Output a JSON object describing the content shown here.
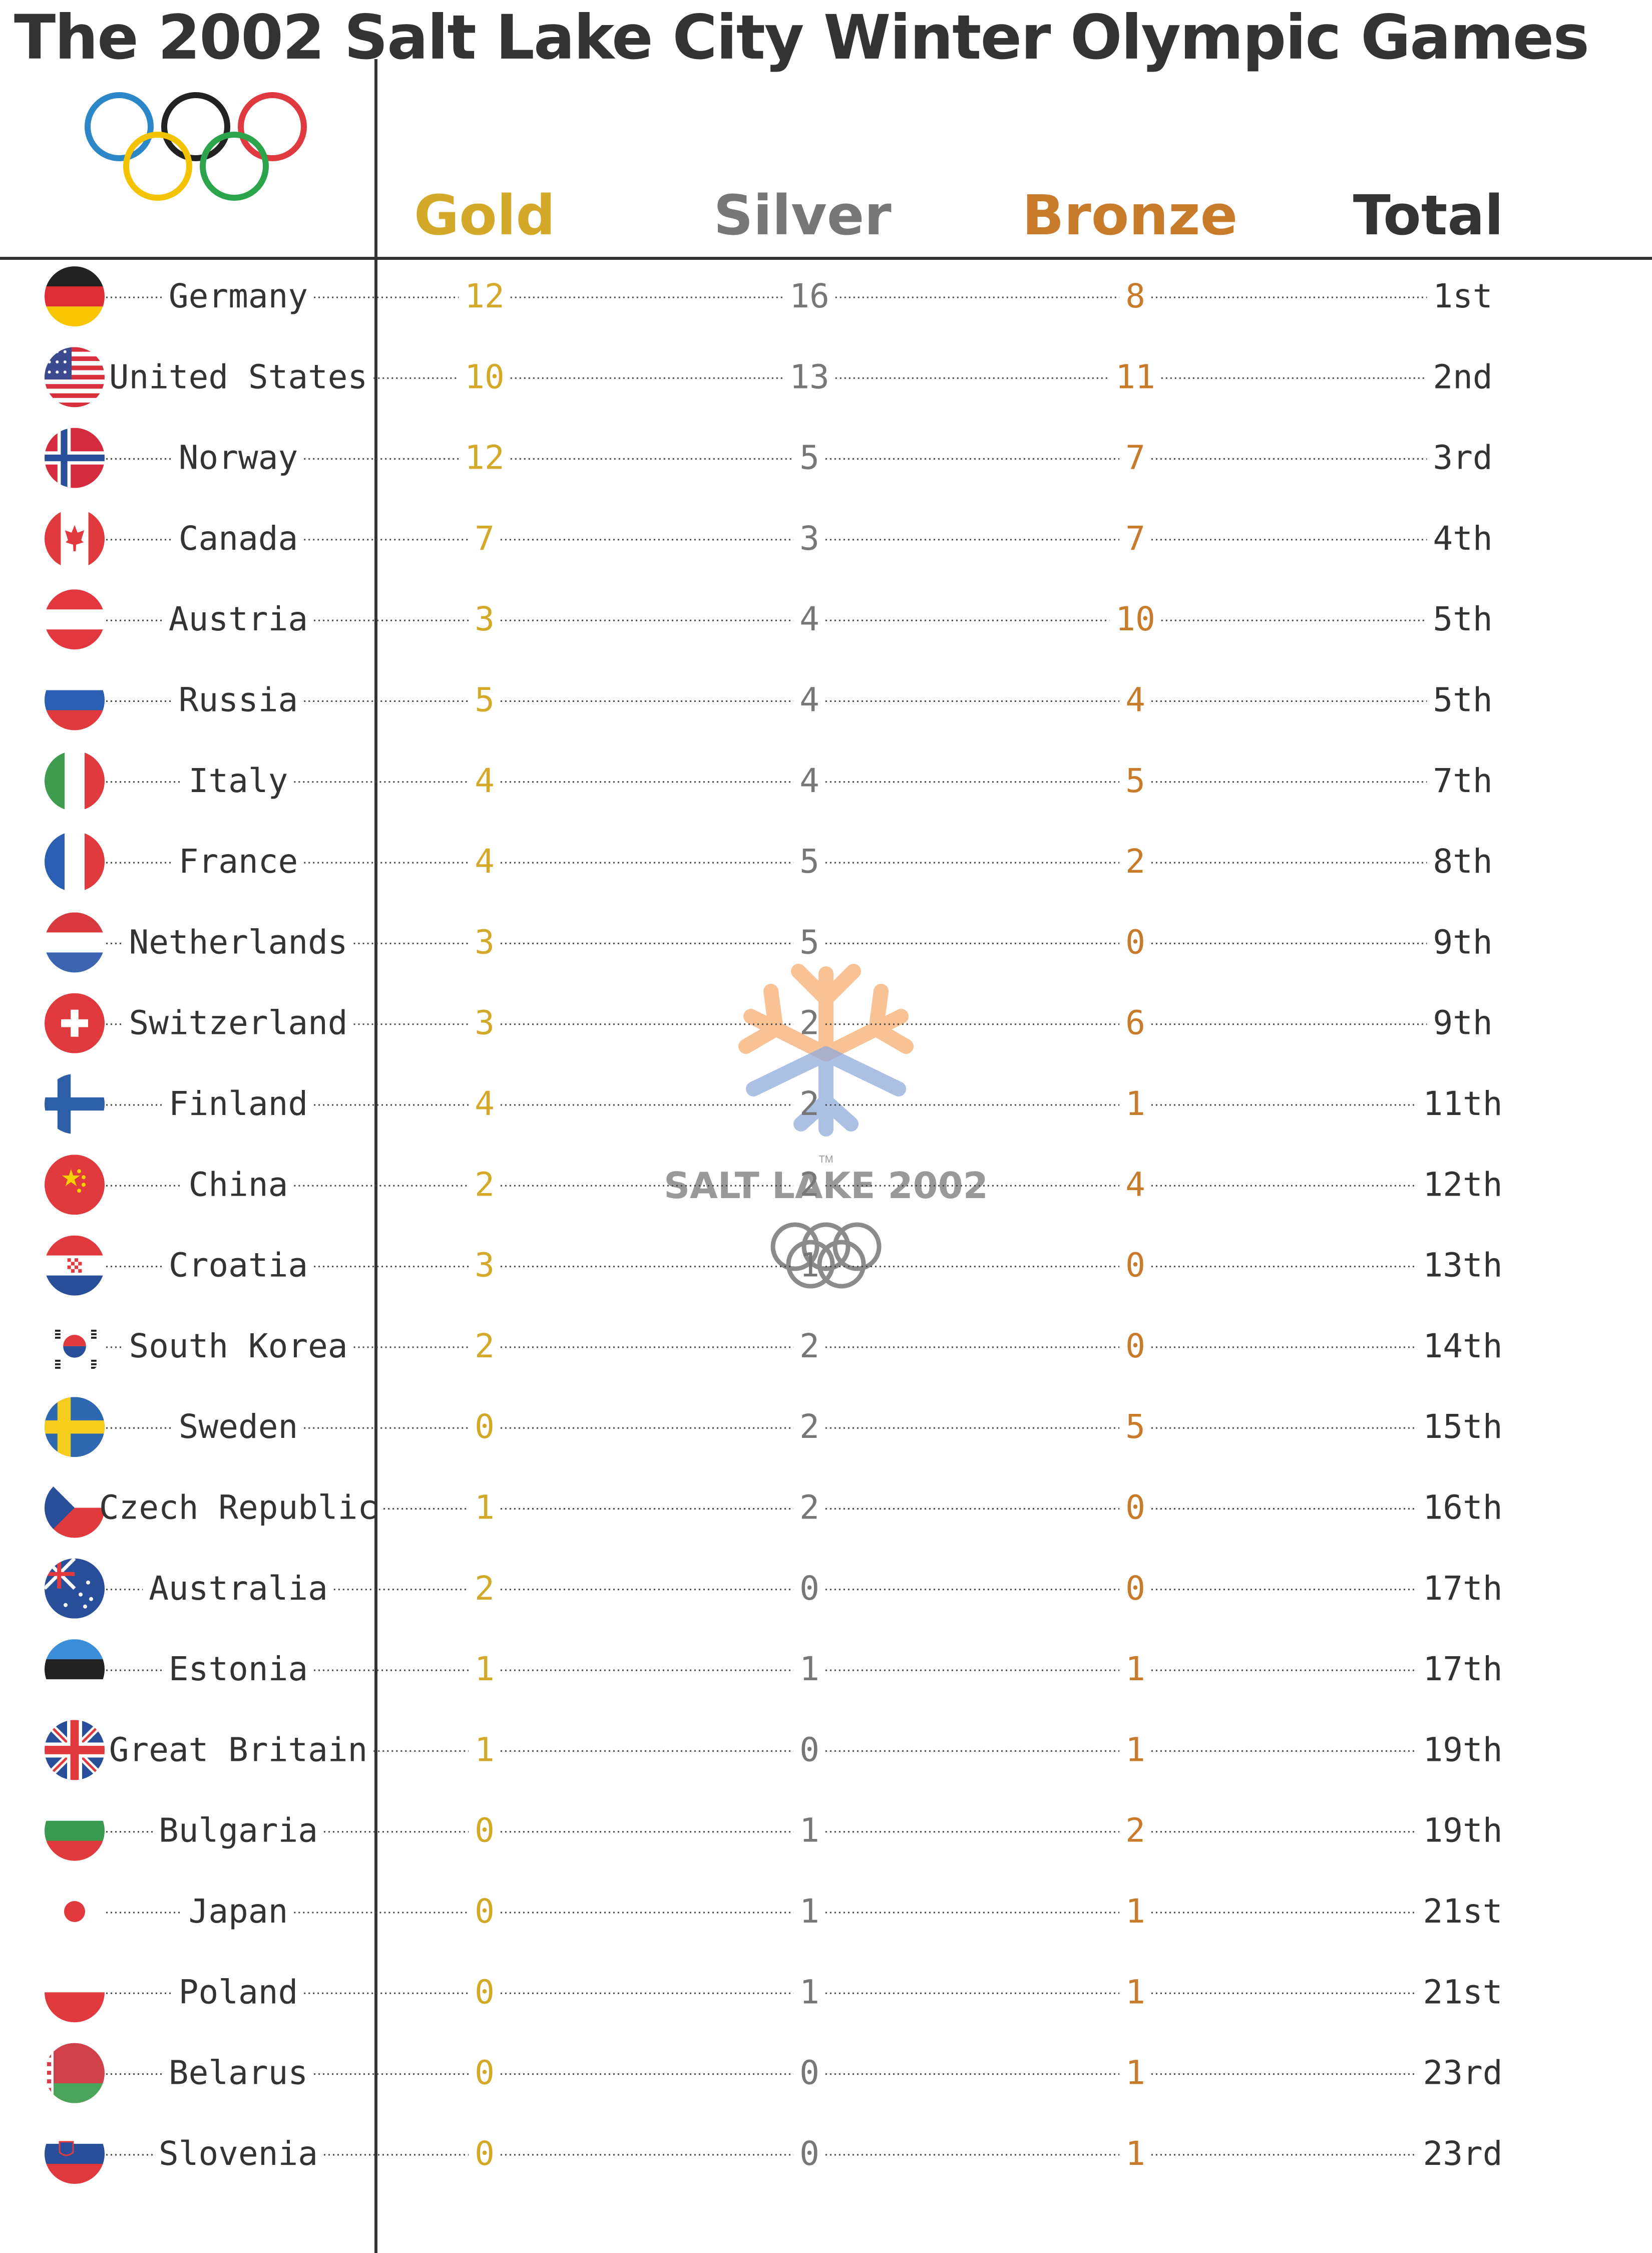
{
  "title": "The 2002 Salt Lake City Winter Olympic Games",
  "logo": {
    "text": "SALT LAKE 2002",
    "tm": "TM",
    "mark": "snowflake"
  },
  "colors": {
    "gold": "#d4a92a",
    "silver": "#777777",
    "bronze": "#c97b2c",
    "total": "#333333",
    "country": "#333333",
    "rings": [
      "#2b87c8",
      "#222222",
      "#df3a3f",
      "#f4c300",
      "#2ca44c"
    ],
    "logo_warm": "#f5a05a",
    "logo_cool": "#7e9cd6"
  },
  "chart_data": {
    "type": "table",
    "title": "The 2002 Salt Lake City Winter Olympic Games",
    "columns": [
      "Gold",
      "Silver",
      "Bronze",
      "Total"
    ],
    "rows": [
      {
        "country": "Germany",
        "flag": "germany-flag-icon",
        "gold": 12,
        "silver": 16,
        "bronze": 8,
        "total": "1st"
      },
      {
        "country": "United States",
        "flag": "united-states-flag-icon",
        "gold": 10,
        "silver": 13,
        "bronze": 11,
        "total": "2nd"
      },
      {
        "country": "Norway",
        "flag": "norway-flag-icon",
        "gold": 12,
        "silver": 5,
        "bronze": 7,
        "total": "3rd"
      },
      {
        "country": "Canada",
        "flag": "canada-flag-icon",
        "gold": 7,
        "silver": 3,
        "bronze": 7,
        "total": "4th"
      },
      {
        "country": "Austria",
        "flag": "austria-flag-icon",
        "gold": 3,
        "silver": 4,
        "bronze": 10,
        "total": "5th"
      },
      {
        "country": "Russia",
        "flag": "russia-flag-icon",
        "gold": 5,
        "silver": 4,
        "bronze": 4,
        "total": "5th"
      },
      {
        "country": "Italy",
        "flag": "italy-flag-icon",
        "gold": 4,
        "silver": 4,
        "bronze": 5,
        "total": "7th"
      },
      {
        "country": "France",
        "flag": "france-flag-icon",
        "gold": 4,
        "silver": 5,
        "bronze": 2,
        "total": "8th"
      },
      {
        "country": "Netherlands",
        "flag": "netherlands-flag-icon",
        "gold": 3,
        "silver": 5,
        "bronze": 0,
        "total": "9th"
      },
      {
        "country": "Switzerland",
        "flag": "switzerland-flag-icon",
        "gold": 3,
        "silver": 2,
        "bronze": 6,
        "total": "9th"
      },
      {
        "country": "Finland",
        "flag": "finland-flag-icon",
        "gold": 4,
        "silver": 2,
        "bronze": 1,
        "total": "11th"
      },
      {
        "country": "China",
        "flag": "china-flag-icon",
        "gold": 2,
        "silver": 2,
        "bronze": 4,
        "total": "12th"
      },
      {
        "country": "Croatia",
        "flag": "croatia-flag-icon",
        "gold": 3,
        "silver": 1,
        "bronze": 0,
        "total": "13th"
      },
      {
        "country": "South Korea",
        "flag": "south-korea-flag-icon",
        "gold": 2,
        "silver": 2,
        "bronze": 0,
        "total": "14th"
      },
      {
        "country": "Sweden",
        "flag": "sweden-flag-icon",
        "gold": 0,
        "silver": 2,
        "bronze": 5,
        "total": "15th"
      },
      {
        "country": "Czech Republic",
        "flag": "czech-republic-flag-icon",
        "gold": 1,
        "silver": 2,
        "bronze": 0,
        "total": "16th"
      },
      {
        "country": "Australia",
        "flag": "australia-flag-icon",
        "gold": 2,
        "silver": 0,
        "bronze": 0,
        "total": "17th"
      },
      {
        "country": "Estonia",
        "flag": "estonia-flag-icon",
        "gold": 1,
        "silver": 1,
        "bronze": 1,
        "total": "17th"
      },
      {
        "country": "Great Britain",
        "flag": "great-britain-flag-icon",
        "gold": 1,
        "silver": 0,
        "bronze": 1,
        "total": "19th"
      },
      {
        "country": "Bulgaria",
        "flag": "bulgaria-flag-icon",
        "gold": 0,
        "silver": 1,
        "bronze": 2,
        "total": "19th"
      },
      {
        "country": "Japan",
        "flag": "japan-flag-icon",
        "gold": 0,
        "silver": 1,
        "bronze": 1,
        "total": "21st"
      },
      {
        "country": "Poland",
        "flag": "poland-flag-icon",
        "gold": 0,
        "silver": 1,
        "bronze": 1,
        "total": "21st"
      },
      {
        "country": "Belarus",
        "flag": "belarus-flag-icon",
        "gold": 0,
        "silver": 0,
        "bronze": 1,
        "total": "23rd"
      },
      {
        "country": "Slovenia",
        "flag": "slovenia-flag-icon",
        "gold": 0,
        "silver": 0,
        "bronze": 1,
        "total": "23rd"
      }
    ]
  }
}
